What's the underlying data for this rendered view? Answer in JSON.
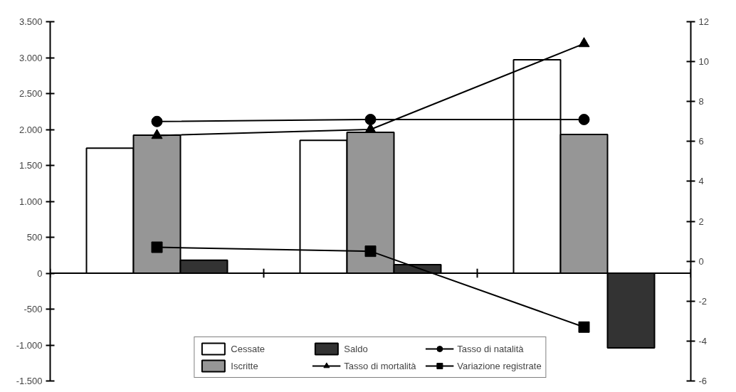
{
  "chart_data": {
    "type": "bar",
    "categories": [
      null,
      null,
      null
    ],
    "series": [
      {
        "name": "Cessate",
        "color": "#ffffff",
        "values": [
          1740,
          1850,
          2970
        ]
      },
      {
        "name": "Iscritte",
        "color": "#969696",
        "values": [
          1920,
          1960,
          1930
        ]
      },
      {
        "name": "Saldo",
        "color": "#333333",
        "values": [
          180,
          120,
          -1040
        ]
      },
      {
        "name": "Tasso di mortalità",
        "type": "line",
        "axis": "y2",
        "marker": "triangle",
        "color": "#000000",
        "values": [
          6.3,
          6.6,
          10.9
        ]
      },
      {
        "name": "Tasso di natalità",
        "type": "line",
        "axis": "y2",
        "marker": "circle",
        "color": "#000000",
        "values": [
          7.0,
          7.1,
          7.1
        ]
      },
      {
        "name": "Variazione registrate",
        "type": "line",
        "axis": "y2",
        "marker": "square",
        "color": "#000000",
        "values": [
          0.7,
          0.5,
          -3.3
        ]
      }
    ],
    "ylim": [
      -1500,
      3500
    ],
    "yticks": [
      {
        "value": -1500,
        "label": "-1.500"
      },
      {
        "value": -1000,
        "label": "-1.000"
      },
      -500,
      0,
      500,
      {
        "value": 1000,
        "label": "1.000"
      },
      {
        "value": 1500,
        "label": "1.500"
      },
      {
        "value": 2000,
        "label": "2.000"
      },
      {
        "value": 2500,
        "label": "2.500"
      },
      {
        "value": 3000,
        "label": "3.000"
      },
      {
        "value": 3500,
        "label": "3.500"
      }
    ],
    "y2lim": [
      -6,
      12
    ],
    "y2ticks": [
      -6,
      -4,
      -2,
      0,
      2,
      4,
      6,
      8,
      10,
      12
    ],
    "tick_labels": "y",
    "legend": "bottom"
  }
}
